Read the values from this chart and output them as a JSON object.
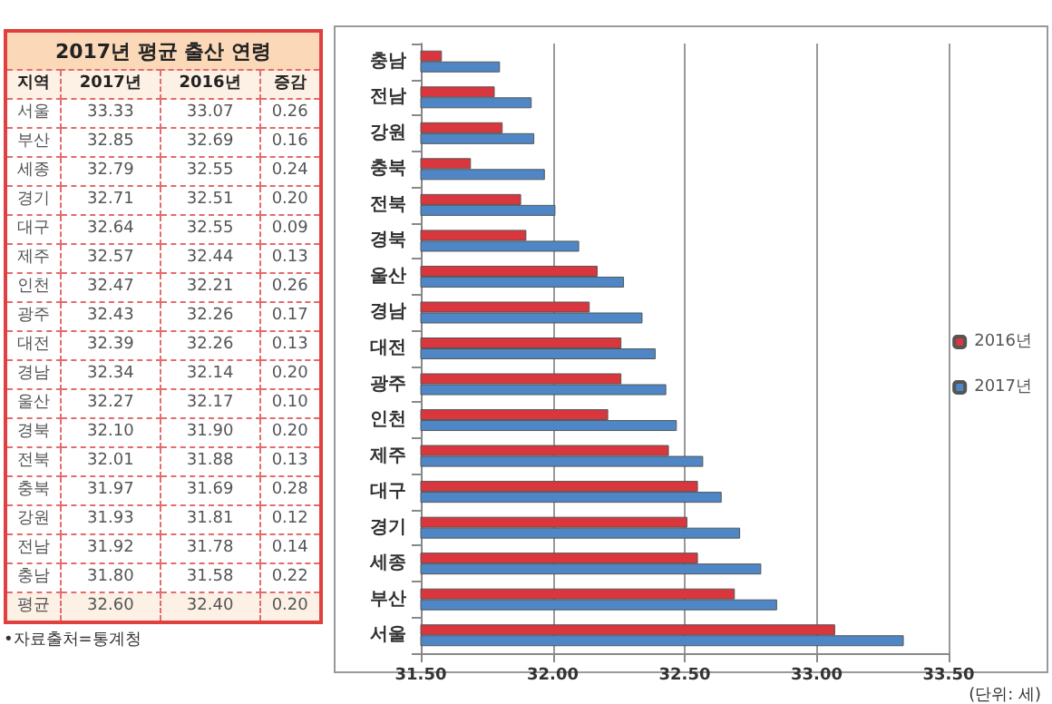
{
  "chart_data": [
    {
      "type": "other",
      "title": "2017년 평균 출산 연령",
      "xlabel": "지역",
      "categories": [
        "서울",
        "부산",
        "세종",
        "경기",
        "대구",
        "제주",
        "인천",
        "광주",
        "대전",
        "경남",
        "울산",
        "경북",
        "전북",
        "충북",
        "강원",
        "전남",
        "충남",
        "평균"
      ],
      "series": [
        {
          "name": "2017년",
          "values": [
            33.33,
            32.85,
            32.79,
            32.71,
            32.64,
            32.57,
            32.47,
            32.43,
            32.39,
            32.34,
            32.27,
            32.1,
            32.01,
            31.97,
            31.93,
            31.92,
            31.8,
            32.6
          ],
          "value_labels": [
            "33.33",
            "32.85",
            "32.79",
            "32.71",
            "32.64",
            "32.57",
            "32.47",
            "32.43",
            "32.39",
            "32.34",
            "32.27",
            "32.10",
            "32.01",
            "31.97",
            "31.93",
            "31.92",
            "31.80",
            "32.60"
          ]
        },
        {
          "name": "2016년",
          "values": [
            33.07,
            32.69,
            32.55,
            32.51,
            32.55,
            32.44,
            32.21,
            32.26,
            32.26,
            32.14,
            32.17,
            31.9,
            31.88,
            31.69,
            31.81,
            31.78,
            31.58,
            32.4
          ],
          "value_labels": [
            "33.07",
            "32.69",
            "32.55",
            "32.51",
            "32.55",
            "32.44",
            "32.21",
            "32.26",
            "32.26",
            "32.14",
            "32.17",
            "31.90",
            "31.88",
            "31.69",
            "31.81",
            "31.78",
            "31.58",
            "32.40"
          ]
        },
        {
          "name": "증감",
          "values": [
            0.26,
            0.16,
            0.24,
            0.2,
            0.09,
            0.13,
            0.26,
            0.17,
            0.13,
            0.2,
            0.1,
            0.2,
            0.13,
            0.28,
            0.12,
            0.14,
            0.22,
            0.2
          ],
          "value_labels": [
            "0.26",
            "0.16",
            "0.24",
            "0.20",
            "0.09",
            "0.13",
            "0.26",
            "0.17",
            "0.13",
            "0.20",
            "0.10",
            "0.20",
            "0.13",
            "0.28",
            "0.12",
            "0.14",
            "0.22",
            "0.20"
          ]
        }
      ],
      "annotations": [
        "•자료출처=통계청"
      ]
    },
    {
      "type": "bar",
      "orientation": "horizontal",
      "categories": [
        "충남",
        "전남",
        "강원",
        "충북",
        "전북",
        "경북",
        "울산",
        "경남",
        "대전",
        "광주",
        "인천",
        "제주",
        "대구",
        "경기",
        "세종",
        "부산",
        "서울"
      ],
      "series": [
        {
          "name": "2016년",
          "color": "#d9363e",
          "values": [
            31.58,
            31.78,
            31.81,
            31.69,
            31.88,
            31.9,
            32.17,
            32.14,
            32.26,
            32.26,
            32.21,
            32.44,
            32.55,
            32.51,
            32.55,
            32.69,
            33.07
          ]
        },
        {
          "name": "2017년",
          "color": "#4f86c6",
          "values": [
            31.8,
            31.92,
            31.93,
            31.97,
            32.01,
            32.1,
            32.27,
            32.34,
            32.39,
            32.43,
            32.47,
            32.57,
            32.64,
            32.71,
            32.79,
            32.85,
            33.33
          ]
        }
      ],
      "xlim": [
        31.5,
        33.5
      ],
      "xticks": [
        {
          "value": 31.5,
          "label": "31.50"
        },
        {
          "value": 32,
          "label": "32.00"
        },
        {
          "value": 32.5,
          "label": "32.50"
        },
        {
          "value": 33,
          "label": "33.00"
        },
        {
          "value": 33.5,
          "label": "33.50"
        }
      ],
      "grid": "x",
      "legend": "right",
      "annotations": [
        "(단위: 세)"
      ]
    }
  ]
}
